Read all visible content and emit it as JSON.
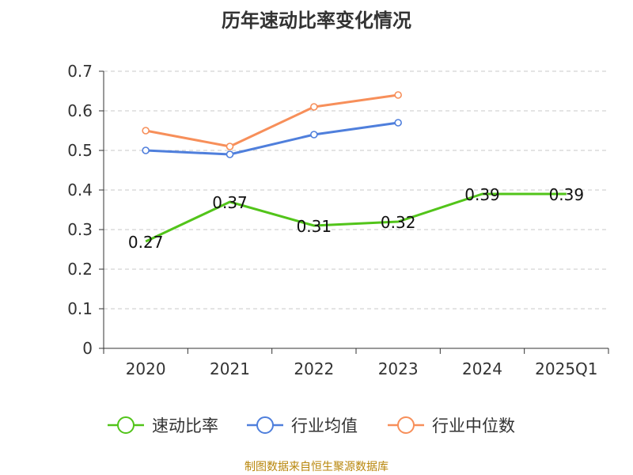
{
  "title": "历年速动比率变化情况",
  "source": "制图数据来自恒生聚源数据库",
  "chart_data": {
    "type": "line",
    "title": "历年速动比率变化情况",
    "categories": [
      "2020",
      "2021",
      "2022",
      "2023",
      "2024",
      "2025Q1"
    ],
    "ylim": [
      0,
      0.7
    ],
    "yticks": [
      "0",
      "0.1",
      "0.2",
      "0.3",
      "0.4",
      "0.5",
      "0.6",
      "0.7"
    ],
    "grid": true,
    "legend_position": "bottom",
    "series": [
      {
        "name": "速动比率",
        "color": "#52c41a",
        "values": [
          0.27,
          0.37,
          0.31,
          0.32,
          0.39,
          0.39
        ],
        "labels": [
          "0.27",
          "0.37",
          "0.31",
          "0.32",
          "0.39",
          "0.39"
        ],
        "show_points": false
      },
      {
        "name": "行业均值",
        "color": "#4f7fdc",
        "values": [
          0.5,
          0.49,
          0.54,
          0.57,
          null,
          null
        ],
        "show_points": true
      },
      {
        "name": "行业中位数",
        "color": "#f78f5a",
        "values": [
          0.55,
          0.51,
          0.61,
          0.64,
          null,
          null
        ],
        "show_points": true
      }
    ]
  }
}
